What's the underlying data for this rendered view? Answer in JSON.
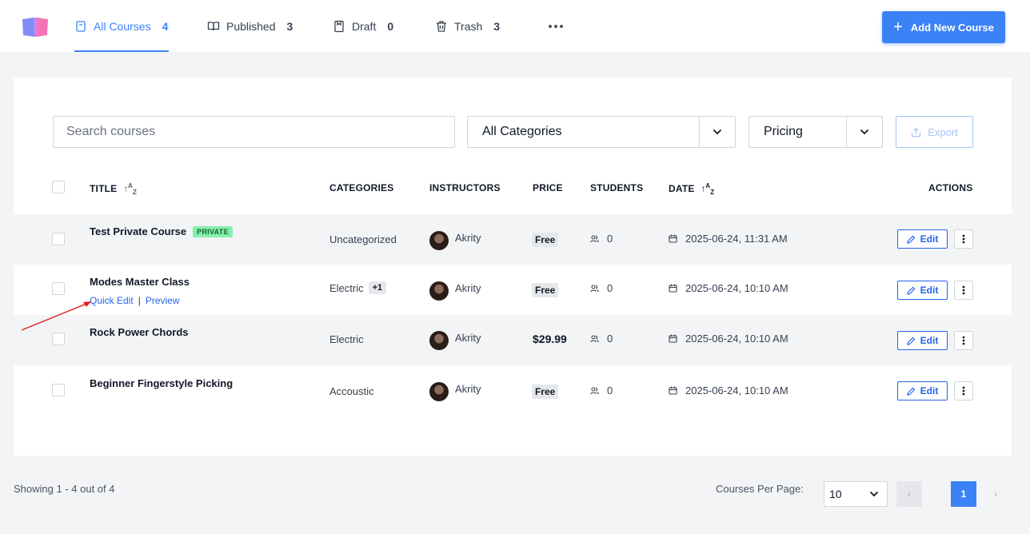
{
  "header": {
    "tabs": [
      {
        "label": "All Courses",
        "count": "4",
        "icon": "book-icon"
      },
      {
        "label": "Published",
        "count": "3",
        "icon": "open-book-icon"
      },
      {
        "label": "Draft",
        "count": "0",
        "icon": "draft-icon"
      },
      {
        "label": "Trash",
        "count": "3",
        "icon": "trash-icon"
      }
    ],
    "add_button": "Add New Course"
  },
  "filters": {
    "search_placeholder": "Search courses",
    "category_value": "All Categories",
    "pricing_value": "Pricing",
    "export_label": "Export"
  },
  "table": {
    "headers": {
      "title": "TITLE",
      "categories": "CATEGORIES",
      "instructors": "INSTRUCTORS",
      "price": "PRICE",
      "students": "STUDENTS",
      "date": "DATE",
      "actions": "ACTIONS"
    },
    "sort_glyph": "↑A↓Z",
    "rows": [
      {
        "title": "Test Private Course",
        "badge": "PRIVATE",
        "category": "Uncategorized",
        "instructor": "Akrity",
        "price": "Free",
        "students": "0",
        "date": "2025-06-24, 11:31 AM",
        "edit": "Edit"
      },
      {
        "title": "Modes Master Class",
        "category": "Electric",
        "extra_categories": "+1",
        "instructor": "Akrity",
        "price": "Free",
        "students": "0",
        "date": "2025-06-24, 10:10 AM",
        "edit": "Edit",
        "quick_edit": "Quick Edit",
        "separator": "|",
        "preview": "Preview"
      },
      {
        "title": "Rock Power Chords",
        "category": "Electric",
        "instructor": "Akrity",
        "price": "$29.99",
        "students": "0",
        "date": "2025-06-24, 10:10 AM",
        "edit": "Edit"
      },
      {
        "title": "Beginner Fingerstyle Picking",
        "category": "Accoustic",
        "instructor": "Akrity",
        "price": "Free",
        "students": "0",
        "date": "2025-06-24, 10:10 AM",
        "edit": "Edit"
      }
    ]
  },
  "footer": {
    "showing": "Showing 1 - 4 out of 4",
    "per_page_label": "Courses Per Page:",
    "per_page_value": "10",
    "current_page": "1",
    "prev": "‹",
    "next": "›"
  },
  "colors": {
    "accent": "#3b82f6",
    "private_badge": "#86efac",
    "annotation_arrow": "#e11d1d"
  }
}
